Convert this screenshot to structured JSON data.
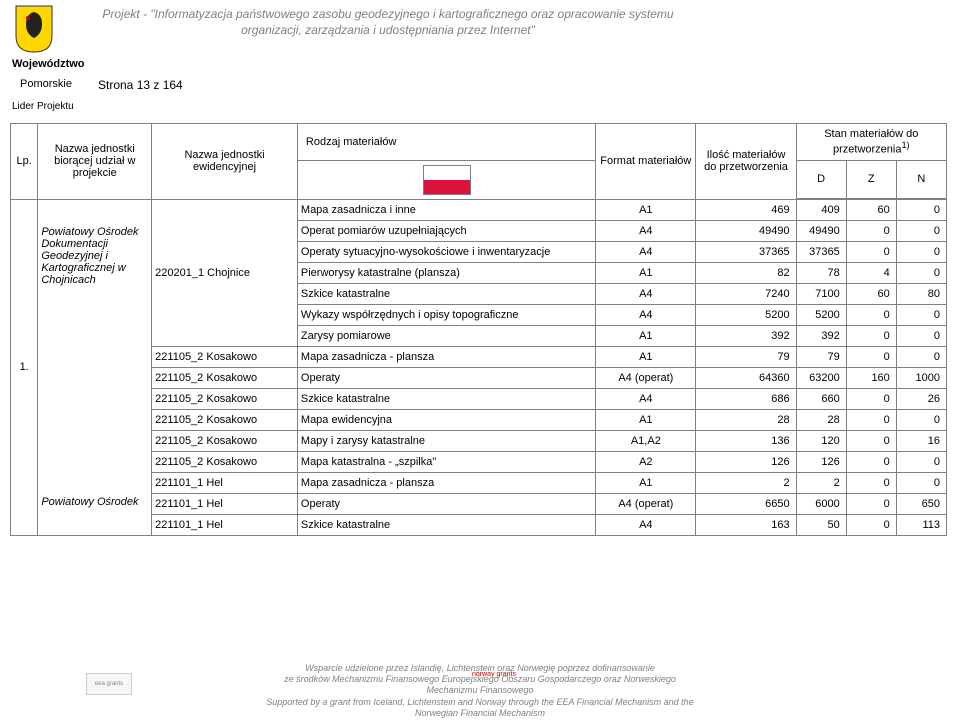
{
  "header": {
    "project_title": "Projekt - \"Informatyzacja państwowego zasobu geodezyjnego i kartograficznego oraz opracowanie systemu organizacji, zarządzania i udostępniania przez Internet\"",
    "region_label": "Województwo",
    "region_name": "Pomorskie",
    "page_label": "Strona 13 z 164",
    "leader_label": "Lider Projektu"
  },
  "columns": {
    "lp": "Lp.",
    "unit": "Nazwa jednostki biorącej udział w projekcie",
    "ev": "Nazwa jednostki ewidencyjnej",
    "mat_group": "Rodzaj materiałów",
    "fmt": "Format materiałów",
    "qty": "Ilość materiałów do przetworzenia",
    "state": "Stan materiałów do przetworzenia",
    "state_note": "1)",
    "d": "D",
    "z": "Z",
    "n": "N"
  },
  "group": {
    "lp": "1.",
    "unit_name": "Powiatowy Ośrodek Dokumentacji Geodezyjnej i Kartograficznej w Chojnicach",
    "unit_name2": "Powiatowy Ośrodek",
    "ev_name": "220201_1 Chojnice"
  },
  "rows": [
    {
      "ev": "",
      "mat": "Mapa zasadnicza i inne",
      "fmt": "A1",
      "qty": "469",
      "d": "409",
      "z": "60",
      "n": "0"
    },
    {
      "ev": "",
      "mat": "Operat pomiarów uzupełniających",
      "fmt": "A4",
      "qty": "49490",
      "d": "49490",
      "z": "0",
      "n": "0"
    },
    {
      "ev": "",
      "mat": "Operaty sytuacyjno-wysokościowe i inwentaryzacje",
      "fmt": "A4",
      "qty": "37365",
      "d": "37365",
      "z": "0",
      "n": "0"
    },
    {
      "ev": "",
      "mat": "Pierworysy katastralne (plansza)",
      "fmt": "A1",
      "qty": "82",
      "d": "78",
      "z": "4",
      "n": "0"
    },
    {
      "ev": "",
      "mat": "Szkice katastralne",
      "fmt": "A4",
      "qty": "7240",
      "d": "7100",
      "z": "60",
      "n": "80"
    },
    {
      "ev": "",
      "mat": "Wykazy współrzędnych i opisy topograficzne",
      "fmt": "A4",
      "qty": "5200",
      "d": "5200",
      "z": "0",
      "n": "0"
    },
    {
      "ev": "",
      "mat": "Zarysy pomiarowe",
      "fmt": "A1",
      "qty": "392",
      "d": "392",
      "z": "0",
      "n": "0"
    },
    {
      "ev": "221105_2 Kosakowo",
      "mat": "Mapa zasadnicza - plansza",
      "fmt": "A1",
      "qty": "79",
      "d": "79",
      "z": "0",
      "n": "0"
    },
    {
      "ev": "221105_2 Kosakowo",
      "mat": "Operaty",
      "fmt": "A4 (operat)",
      "qty": "64360",
      "d": "63200",
      "z": "160",
      "n": "1000"
    },
    {
      "ev": "221105_2 Kosakowo",
      "mat": "Szkice katastralne",
      "fmt": "A4",
      "qty": "686",
      "d": "660",
      "z": "0",
      "n": "26"
    },
    {
      "ev": "221105_2 Kosakowo",
      "mat": "Mapa ewidencyjna",
      "fmt": "A1",
      "qty": "28",
      "d": "28",
      "z": "0",
      "n": "0"
    },
    {
      "ev": "221105_2 Kosakowo",
      "mat": "Mapy i zarysy katastralne",
      "fmt": "A1,A2",
      "qty": "136",
      "d": "120",
      "z": "0",
      "n": "16"
    },
    {
      "ev": "221105_2 Kosakowo",
      "mat": "Mapa katastralna - „szpilka\"",
      "fmt": "A2",
      "qty": "126",
      "d": "126",
      "z": "0",
      "n": "0"
    },
    {
      "ev": "221101_1 Hel",
      "mat": "Mapa zasadnicza - plansza",
      "fmt": "A1",
      "qty": "2",
      "d": "2",
      "z": "0",
      "n": "0"
    },
    {
      "ev": "221101_1 Hel",
      "mat": "Operaty",
      "fmt": "A4 (operat)",
      "qty": "6650",
      "d": "6000",
      "z": "0",
      "n": "650"
    },
    {
      "ev": "221101_1 Hel",
      "mat": "Szkice katastralne",
      "fmt": "A4",
      "qty": "163",
      "d": "50",
      "z": "0",
      "n": "113"
    }
  ],
  "footer": {
    "line1": "Wsparcie udzielone przez Islandię, Lichtenstein oraz Norwegię poprzez dofinansowanie",
    "line2": "ze środków Mechanizmu Finansowego Europejskiego Obszaru Gospodarczego oraz Norweskiego",
    "line3": "Mechanizmu Finansowego",
    "line4": "Supported by a grant from Iceland, Lichtenstein and Norway through the EEA Financial Mechanism and the",
    "line5": "Norwegian Financial Mechanism",
    "left_logo": "eea grants",
    "right_logo": "norway grants"
  }
}
